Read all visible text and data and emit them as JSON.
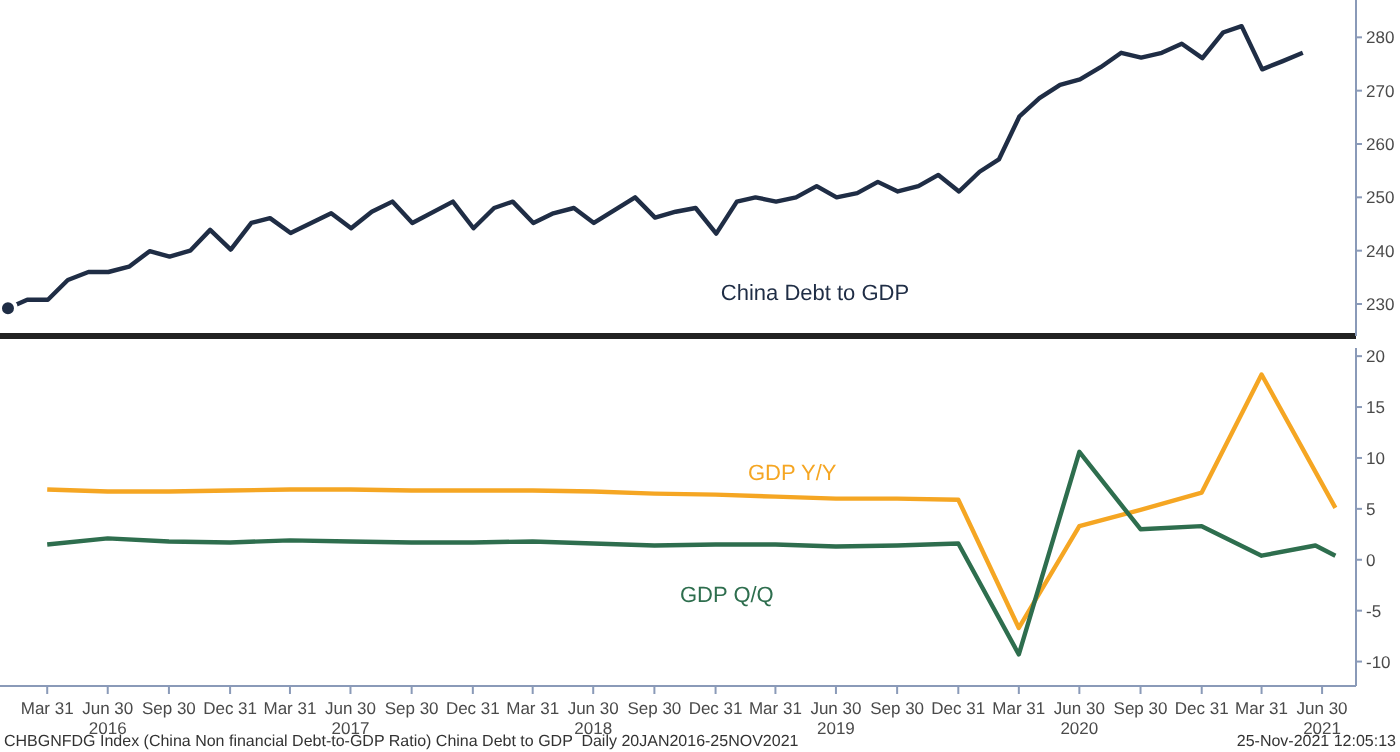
{
  "chart_data": [
    {
      "type": "line",
      "xlim": [
        "2016-01-20",
        "2021-08-20"
      ],
      "ylim": [
        224,
        287
      ],
      "yticks": [
        230,
        240,
        250,
        260,
        270,
        280
      ],
      "tick_labels": "y",
      "grid": false,
      "marker": "none",
      "series": [
        {
          "name": "China Debt to GDP",
          "color": "#1f2d45",
          "x": [
            "2016-02",
            "2016-03",
            "2016-04",
            "2016-05",
            "2016-06",
            "2016-07",
            "2016-08",
            "2016-09",
            "2016-10",
            "2016-11",
            "2016-12",
            "2017-01",
            "2017-02",
            "2017-03",
            "2017-04",
            "2017-06",
            "2017-07",
            "2017-08",
            "2017-09",
            "2017-10",
            "2017-12",
            "2018-01",
            "2018-02",
            "2018-03",
            "2018-04",
            "2018-05",
            "2018-06",
            "2018-07",
            "2018-09",
            "2018-10",
            "2018-11",
            "2018-12",
            "2019-01",
            "2019-02",
            "2019-03",
            "2019-04",
            "2019-05",
            "2019-06",
            "2019-07",
            "2019-08",
            "2019-09",
            "2019-10",
            "2019-11",
            "2019-12",
            "2020-01",
            "2020-02",
            "2020-03",
            "2020-04",
            "2020-05",
            "2020-06",
            "2020-07",
            "2020-08",
            "2020-09",
            "2020-10",
            "2020-11",
            "2020-12",
            "2021-01",
            "2021-02",
            "2021-03",
            "2021-04",
            "2021-05",
            "2021-06"
          ],
          "values": [
            229.2,
            230.8,
            230.8,
            234.5,
            236,
            236,
            237,
            239.9,
            238.9,
            240,
            243.9,
            240.2,
            245.2,
            246.1,
            243.3,
            247,
            244.2,
            247.3,
            249.2,
            245.2,
            249.2,
            244.2,
            248,
            249.2,
            245.2,
            247,
            248,
            245.2,
            250,
            246.2,
            247.3,
            248,
            243.2,
            249.2,
            250,
            249.2,
            250,
            252.1,
            250,
            250.8,
            252.9,
            251.1,
            252.1,
            254.2,
            251.1,
            254.8,
            257.1,
            265.2,
            268.6,
            271.1,
            272.1,
            274.4,
            277.1,
            276.2,
            277.1,
            278.8,
            276.1,
            280.9,
            282.1,
            274,
            275.5,
            277.1
          ]
        }
      ]
    },
    {
      "type": "line",
      "xlim": [
        "2016-01-20",
        "2021-08-20"
      ],
      "ylim": [
        -12.4,
        20.8
      ],
      "yticks": [
        -10,
        -5,
        0,
        5,
        10,
        15,
        20
      ],
      "xticks": [
        {
          "value": "2016-03-31",
          "label": "Mar 31"
        },
        {
          "value": "2016-06-30",
          "label": "Jun 30\n2016"
        },
        {
          "value": "2016-09-30",
          "label": "Sep 30"
        },
        {
          "value": "2016-12-31",
          "label": "Dec 31"
        },
        {
          "value": "2017-03-31",
          "label": "Mar 31"
        },
        {
          "value": "2017-06-30",
          "label": "Jun 30\n2017"
        },
        {
          "value": "2017-09-30",
          "label": "Sep 30"
        },
        {
          "value": "2017-12-31",
          "label": "Dec 31"
        },
        {
          "value": "2018-03-31",
          "label": "Mar 31"
        },
        {
          "value": "2018-06-30",
          "label": "Jun 30\n2018"
        },
        {
          "value": "2018-09-30",
          "label": "Sep 30"
        },
        {
          "value": "2018-12-31",
          "label": "Dec 31"
        },
        {
          "value": "2019-03-31",
          "label": "Mar 31"
        },
        {
          "value": "2019-06-30",
          "label": "Jun 30\n2019"
        },
        {
          "value": "2019-09-30",
          "label": "Sep 30"
        },
        {
          "value": "2019-12-31",
          "label": "Dec 31"
        },
        {
          "value": "2020-03-31",
          "label": "Mar 31"
        },
        {
          "value": "2020-06-30",
          "label": "Jun 30\n2020"
        },
        {
          "value": "2020-09-30",
          "label": "Sep 30"
        },
        {
          "value": "2020-12-31",
          "label": "Dec 31"
        },
        {
          "value": "2021-03-31",
          "label": "Mar 31"
        },
        {
          "value": "2021-06-30",
          "label": "Jun 30\n2021"
        }
      ],
      "grid": false,
      "marker": "none",
      "series": [
        {
          "name": "GDP Y/Y",
          "color": "#f5a623",
          "x": [
            "2016-03-31",
            "2016-06-30",
            "2016-09-30",
            "2016-12-31",
            "2017-03-31",
            "2017-06-30",
            "2017-09-30",
            "2017-12-31",
            "2018-03-31",
            "2018-06-30",
            "2018-09-30",
            "2018-12-31",
            "2019-03-31",
            "2019-06-30",
            "2019-09-30",
            "2019-12-31",
            "2020-03-31",
            "2020-06-30",
            "2020-09-30",
            "2020-12-31",
            "2021-03-31",
            "2021-07-20"
          ],
          "values": [
            6.9,
            6.7,
            6.7,
            6.8,
            6.9,
            6.9,
            6.8,
            6.8,
            6.8,
            6.7,
            6.5,
            6.4,
            6.2,
            6.0,
            6.0,
            5.9,
            -6.7,
            3.3,
            4.9,
            6.6,
            18.2,
            5.1
          ]
        },
        {
          "name": "GDP Q/Q",
          "color": "#2e6e4e",
          "x": [
            "2016-03-31",
            "2016-06-30",
            "2016-09-30",
            "2016-12-31",
            "2017-03-31",
            "2017-06-30",
            "2017-09-30",
            "2017-12-31",
            "2018-03-31",
            "2018-06-30",
            "2018-09-30",
            "2018-12-31",
            "2019-03-31",
            "2019-06-30",
            "2019-09-30",
            "2019-12-31",
            "2020-03-31",
            "2020-06-30",
            "2020-09-30",
            "2020-12-31",
            "2021-03-31",
            "2021-06-20",
            "2021-07-20"
          ],
          "values": [
            1.5,
            2.1,
            1.8,
            1.7,
            1.9,
            1.8,
            1.7,
            1.7,
            1.8,
            1.6,
            1.4,
            1.5,
            1.5,
            1.3,
            1.4,
            1.6,
            -9.3,
            10.6,
            3.0,
            3.3,
            0.4,
            1.4,
            0.4
          ]
        }
      ],
      "annotations": [
        "CHBGNFDG Index (China Non financial Debt-to-GDP Ratio) China Debt to GDP  Daily 20JAN2016-25NOV2021",
        "25-Nov-2021 12:05:13"
      ]
    }
  ]
}
